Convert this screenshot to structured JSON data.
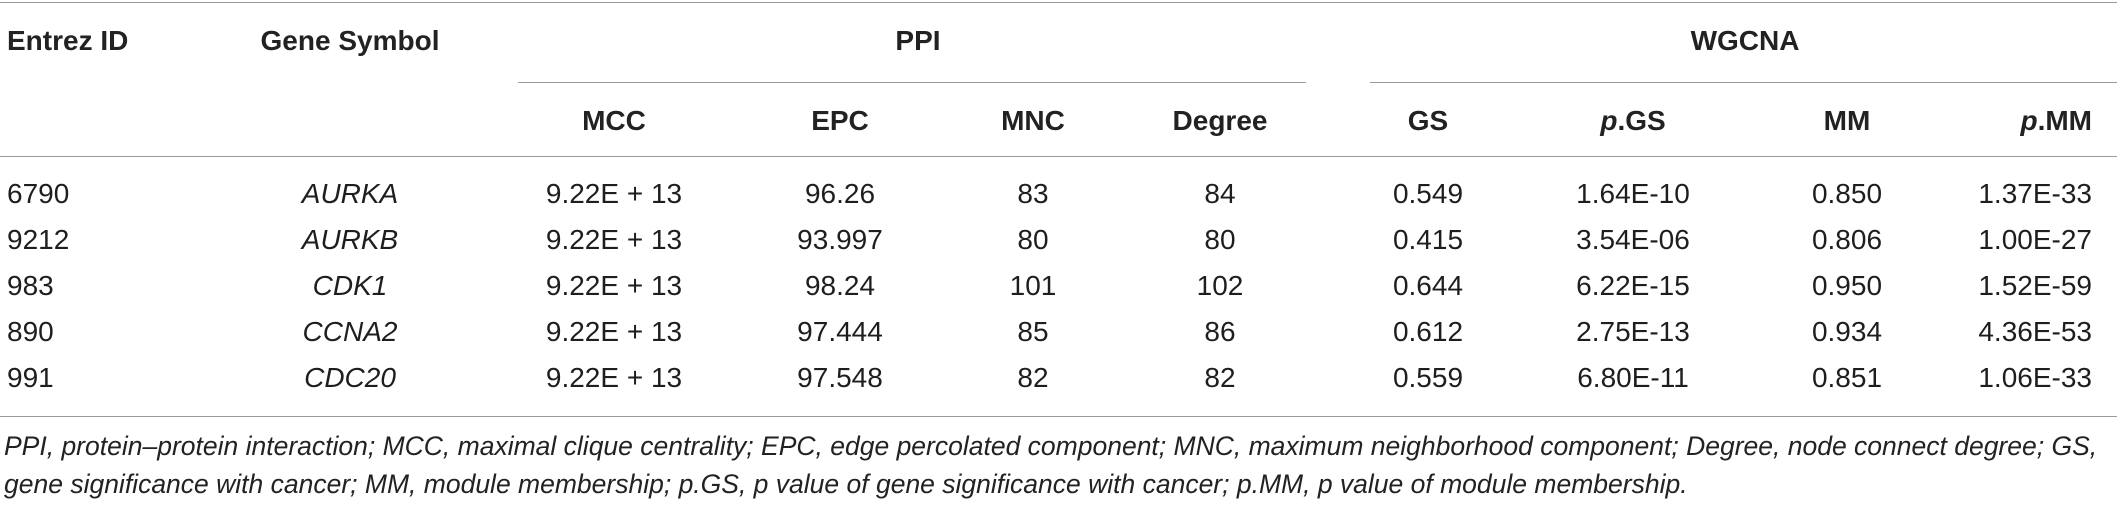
{
  "header": {
    "entrez_id": "Entrez ID",
    "gene_symbol": "Gene Symbol",
    "group_ppi": "PPI",
    "group_wgcna": "WGCNA",
    "mcc": "MCC",
    "epc": "EPC",
    "mnc": "MNC",
    "degree": "Degree",
    "gs": "GS",
    "pgs_prefix": "p",
    "pgs_suffix": ".GS",
    "mm": "MM",
    "pmm_prefix": "p",
    "pmm_suffix": ".MM"
  },
  "rows": [
    {
      "entrez": "6790",
      "symbol": "AURKA",
      "mcc": "9.22E + 13",
      "epc": "96.26",
      "mnc": "83",
      "degree": "84",
      "gs": "0.549",
      "pgs": "1.64E-10",
      "mm": "0.850",
      "pmm": "1.37E-33"
    },
    {
      "entrez": "9212",
      "symbol": "AURKB",
      "mcc": "9.22E + 13",
      "epc": "93.997",
      "mnc": "80",
      "degree": "80",
      "gs": "0.415",
      "pgs": "3.54E-06",
      "mm": "0.806",
      "pmm": "1.00E-27"
    },
    {
      "entrez": "983",
      "symbol": "CDK1",
      "mcc": "9.22E + 13",
      "epc": "98.24",
      "mnc": "101",
      "degree": "102",
      "gs": "0.644",
      "pgs": "6.22E-15",
      "mm": "0.950",
      "pmm": "1.52E-59"
    },
    {
      "entrez": "890",
      "symbol": "CCNA2",
      "mcc": "9.22E + 13",
      "epc": "97.444",
      "mnc": "85",
      "degree": "86",
      "gs": "0.612",
      "pgs": "2.75E-13",
      "mm": "0.934",
      "pmm": "4.36E-53"
    },
    {
      "entrez": "991",
      "symbol": "CDC20",
      "mcc": "9.22E + 13",
      "epc": "97.548",
      "mnc": "82",
      "degree": "82",
      "gs": "0.559",
      "pgs": "6.80E-11",
      "mm": "0.851",
      "pmm": "1.06E-33"
    }
  ],
  "footnote": "PPI, protein–protein interaction; MCC, maximal clique centrality; EPC, edge percolated component; MNC, maximum neighborhood component; Degree, node connect degree; GS, gene significance with cancer; MM, module membership; p.GS, p value of gene significance with cancer; p.MM, p value of module membership."
}
